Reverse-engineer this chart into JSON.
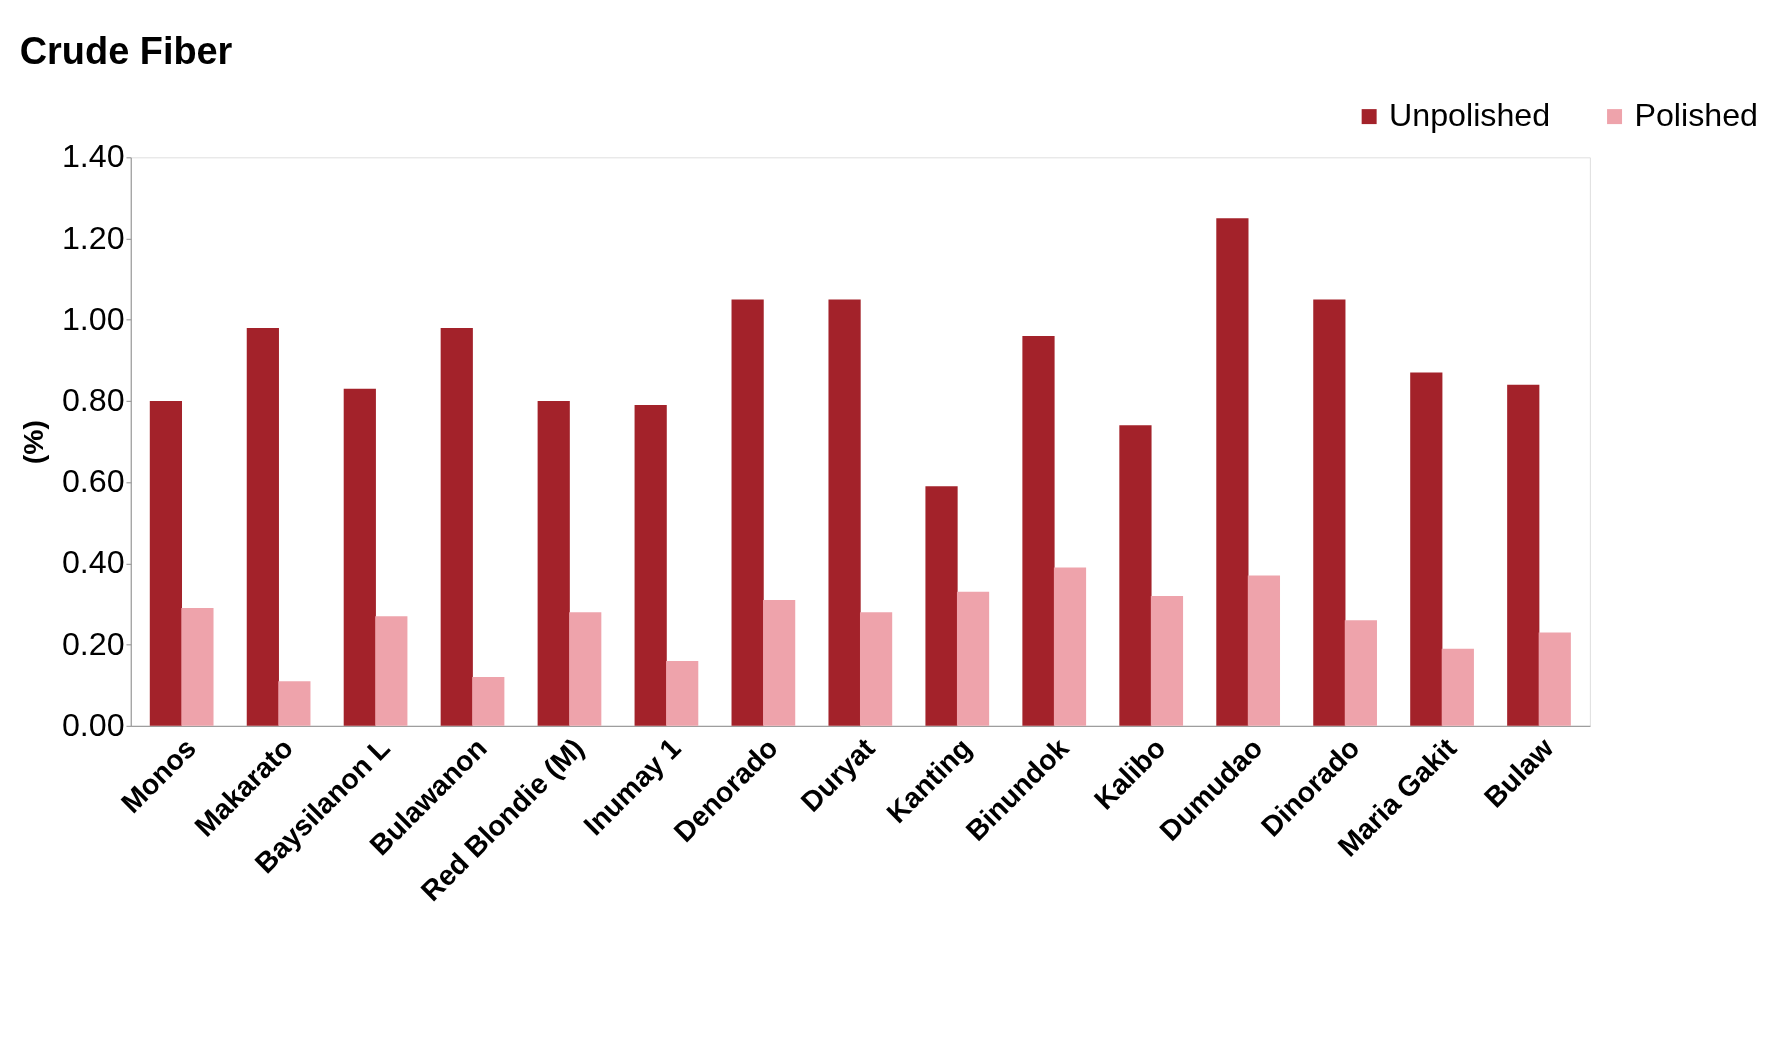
{
  "chart_data": {
    "type": "bar",
    "title": "Crude Fiber",
    "ylabel": "(%)",
    "categories": [
      "Monos",
      "Makarato",
      "Baysilanon L",
      "Bulawanon",
      "Red Blondie (M)",
      "Inumay 1",
      "Denorado",
      "Duryat",
      "Kanting",
      "Binundok",
      "Kalibo",
      "Dumudao",
      "Dinorado",
      "Maria Gakit",
      "Bulaw"
    ],
    "series": [
      {
        "name": "Unpolished",
        "color": "#a3222a",
        "values": [
          0.8,
          0.98,
          0.83,
          0.98,
          0.8,
          0.79,
          1.05,
          1.05,
          0.59,
          0.96,
          0.74,
          1.25,
          1.05,
          0.87,
          0.84
        ]
      },
      {
        "name": "Polished",
        "color": "#eea3ab",
        "values": [
          0.29,
          0.11,
          0.27,
          0.12,
          0.28,
          0.16,
          0.31,
          0.28,
          0.33,
          0.39,
          0.32,
          0.37,
          0.26,
          0.19,
          0.23
        ]
      }
    ],
    "ylim": [
      0,
      1.4
    ],
    "yticks": [
      {
        "value": 0,
        "label": "0.00"
      },
      {
        "value": 0.2,
        "label": "0.20"
      },
      {
        "value": 0.4,
        "label": "0.40"
      },
      {
        "value": 0.6,
        "label": "0.60"
      },
      {
        "value": 0.8,
        "label": "0.80"
      },
      {
        "value": 1.0,
        "label": "1.00"
      },
      {
        "value": 1.2,
        "label": "1.20"
      },
      {
        "value": 1.4,
        "label": "1.40"
      }
    ],
    "grid": false,
    "legend": "top right"
  }
}
